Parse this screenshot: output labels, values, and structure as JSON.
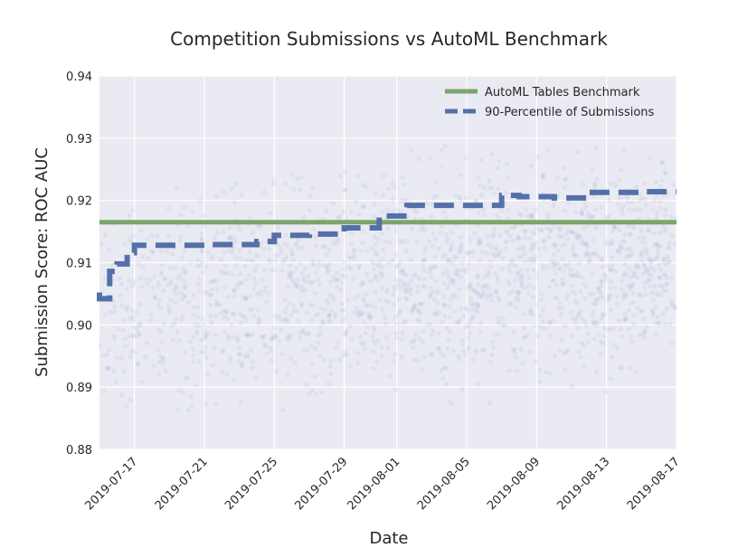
{
  "chart_data": {
    "type": "line",
    "title": "Competition Submissions vs AutoML Benchmark",
    "xlabel": "Date",
    "ylabel": "Submission Score: ROC AUC",
    "xlim": [
      "2019-07-15",
      "2019-08-17"
    ],
    "ylim": [
      0.88,
      0.94
    ],
    "x_ticks": [
      "2019-07-17",
      "2019-07-21",
      "2019-07-25",
      "2019-07-29",
      "2019-08-01",
      "2019-08-05",
      "2019-08-09",
      "2019-08-13",
      "2019-08-17"
    ],
    "y_ticks": [
      0.88,
      0.89,
      0.9,
      0.91,
      0.92,
      0.93,
      0.94
    ],
    "grid": true,
    "legend_placement": "top-right",
    "background": "#eaeaf2",
    "series": [
      {
        "name": "AutoML Tables Benchmark",
        "style": "solid",
        "color": "#7ba56c",
        "x": [
          "2019-07-15",
          "2019-08-17"
        ],
        "y": [
          0.9165,
          0.9165
        ]
      },
      {
        "name": "90-Percentile of Submissions",
        "style": "dashed",
        "color": "#5470aa",
        "x": [
          "2019-07-15",
          "2019-07-15T14:00",
          "2019-07-16",
          "2019-07-16T14:00",
          "2019-07-17",
          "2019-07-21",
          "2019-07-24",
          "2019-07-25",
          "2019-07-27",
          "2019-07-29",
          "2019-07-31",
          "2019-08-01T14:00",
          "2019-08-07",
          "2019-08-08",
          "2019-08-10",
          "2019-08-12",
          "2019-08-15",
          "2019-08-17"
        ],
        "y": [
          0.9052,
          0.9042,
          0.9086,
          0.9098,
          0.9116,
          0.9128,
          0.9129,
          0.9134,
          0.9144,
          0.9146,
          0.9156,
          0.9175,
          0.9192,
          0.9208,
          0.9206,
          0.9204,
          0.9213,
          0.9214
        ]
      }
    ],
    "scatter": {
      "color": "#8c9bd0",
      "opacity": 0.12
    }
  }
}
